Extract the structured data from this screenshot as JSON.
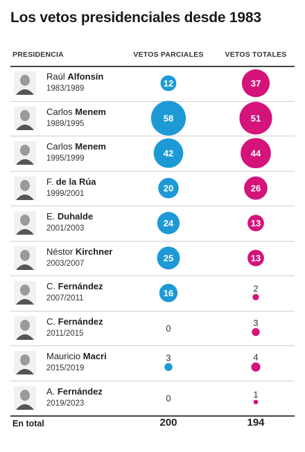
{
  "title": "Los vetos presidenciales desde 1983",
  "headers": {
    "presidency": "PRESIDENCIA",
    "partial": "VETOS PARCIALES",
    "total": "VETOS TOTALES"
  },
  "footer": {
    "label": "En total",
    "partial_total": "200",
    "total_total": "194"
  },
  "colors": {
    "partial": "#1d9ad6",
    "total": "#d4137b"
  },
  "chart_data": {
    "type": "bubble-table",
    "categories": [
      "Raúl Alfonsín 1983/1989",
      "Carlos Menem 1989/1995",
      "Carlos Menem 1995/1999",
      "F. de la Rúa 1999/2001",
      "E. Duhalde 2001/2003",
      "Néstor Kirchner 2003/2007",
      "C. Fernández 2007/2011",
      "C. Fernández 2011/2015",
      "Mauricio Macri 2015/2019",
      "A. Fernández 2019/2023"
    ],
    "series": [
      {
        "name": "VETOS PARCIALES",
        "values": [
          12,
          58,
          42,
          20,
          24,
          25,
          16,
          0,
          3,
          0
        ]
      },
      {
        "name": "VETOS TOTALES",
        "values": [
          37,
          51,
          44,
          26,
          13,
          13,
          2,
          3,
          4,
          1
        ]
      }
    ]
  },
  "presidents": [
    {
      "first": "Raúl",
      "last": "Alfonsín",
      "period": "1983/1989"
    },
    {
      "first": "Carlos",
      "last": "Menem",
      "period": "1989/1995"
    },
    {
      "first": "Carlos",
      "last": "Menem",
      "period": "1995/1999"
    },
    {
      "first": "F.",
      "last": "de la Rúa",
      "period": "1999/2001"
    },
    {
      "first": "E.",
      "last": "Duhalde",
      "period": "2001/2003"
    },
    {
      "first": "Néstor",
      "last": "Kirchner",
      "period": "2003/2007"
    },
    {
      "first": "C.",
      "last": "Fernández",
      "period": "2007/2011"
    },
    {
      "first": "C.",
      "last": "Fernández",
      "period": "2011/2015"
    },
    {
      "first": "Mauricio",
      "last": "Macri",
      "period": "2015/2019"
    },
    {
      "first": "A.",
      "last": "Fernández",
      "period": "2019/2023"
    }
  ]
}
